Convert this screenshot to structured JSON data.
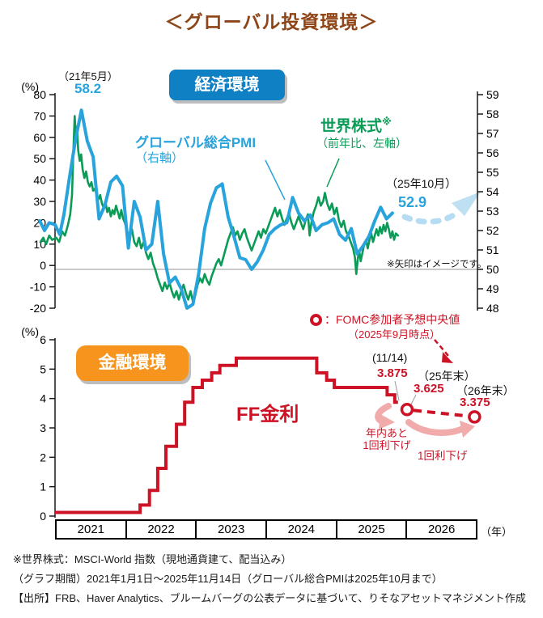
{
  "title": "＜グローバル投資環境＞",
  "top_chart": {
    "badge": "経済環境",
    "peak_date": "（21年5月）",
    "peak_value": "58.2",
    "pmi_label": "グローバル総合PMI",
    "pmi_sublabel": "（右軸）",
    "equity_label": "世界株式",
    "equity_label_mark": "※",
    "equity_sublabel": "（前年比、左軸）",
    "latest_date": "（25年10月）",
    "latest_value": "52.9",
    "arrow_note": "※矢印はイメージです。"
  },
  "bottom_chart": {
    "badge": "金融環境",
    "line_label": "FF金利",
    "fomc_legend": "：FOMC参加者予想中央値",
    "fomc_legend_sub": "（2025年9月時点）",
    "current_date": "(11/14)",
    "current_value": "3.875",
    "proj1_date": "（25年末）",
    "proj1_value": "3.625",
    "proj2_date": "（26年末）",
    "proj2_value": "3.375",
    "cut_note1_line1": "年内あと",
    "cut_note1_line2": "1回利下げ",
    "cut_note2": "1回利下げ"
  },
  "x_axis": {
    "years": [
      "2021",
      "2022",
      "2023",
      "2024",
      "2025",
      "2026"
    ],
    "unit": "（年）"
  },
  "footnotes": [
    "※世界株式：MSCI-World 指数（現地通貨建て、配当込み）",
    "（グラフ期間）2021年1月1日～2025年11月14日（グローバル総合PMIは2025年10月まで）",
    "【出所】FRB、Haver Analytics、ブルームバーグの公表データに基づいて、りそなアセットマネジメント作成"
  ],
  "colors": {
    "title_brown": "#8e4517",
    "econ_badge_blue": "#0f80c4",
    "fin_badge_orange": "#f7941e",
    "pmi_blue": "#29a3dc",
    "equity_green": "#0a9b57",
    "ff_red": "#cd1225",
    "pink_arrow": "#f2abab",
    "lightblue_arrow": "#bfe0f2",
    "baseline_gray": "#b8b8b8"
  },
  "chart_data": [
    {
      "type": "line",
      "name": "経済環境",
      "x_unit": "months since 2021-01",
      "left_axis": {
        "label": "(%)",
        "lim": [
          -20,
          80
        ],
        "ticks": [
          80,
          70,
          60,
          50,
          40,
          30,
          20,
          10,
          0,
          -10,
          -20
        ]
      },
      "right_axis": {
        "lim": [
          48,
          59
        ],
        "ticks": [
          59,
          58,
          57,
          56,
          55,
          54,
          53,
          52,
          51,
          50,
          49,
          48
        ]
      },
      "baseline_right_value": 50,
      "series": [
        {
          "name": "世界株式（前年比、左軸）",
          "axis": "left",
          "color": "#0a9b57",
          "points": [
            [
              -2.5,
              11
            ],
            [
              -2.0,
              13
            ],
            [
              -1.5,
              10
            ],
            [
              -1.0,
              14
            ],
            [
              -0.5,
              12
            ],
            [
              0.2,
              13
            ],
            [
              0.7,
              11
            ],
            [
              1.2,
              16
            ],
            [
              1.7,
              14
            ],
            [
              2.2,
              19
            ],
            [
              2.6,
              24
            ],
            [
              2.9,
              33
            ],
            [
              3.15,
              55
            ],
            [
              3.35,
              70
            ],
            [
              3.55,
              60
            ],
            [
              3.75,
              65
            ],
            [
              3.95,
              54
            ],
            [
              4.2,
              49
            ],
            [
              4.45,
              52
            ],
            [
              4.7,
              45
            ],
            [
              5.0,
              41
            ],
            [
              5.3,
              44
            ],
            [
              5.6,
              39
            ],
            [
              5.9,
              37
            ],
            [
              6.2,
              39
            ],
            [
              6.5,
              35
            ],
            [
              6.8,
              36
            ],
            [
              7.1,
              33
            ],
            [
              7.4,
              31
            ],
            [
              7.7,
              33
            ],
            [
              8.0,
              29
            ],
            [
              8.3,
              27
            ],
            [
              8.6,
              30
            ],
            [
              8.9,
              25
            ],
            [
              9.2,
              27
            ],
            [
              9.5,
              23
            ],
            [
              9.8,
              26
            ],
            [
              10.1,
              24
            ],
            [
              10.4,
              28
            ],
            [
              10.7,
              25
            ],
            [
              11.0,
              22
            ],
            [
              11.3,
              26
            ],
            [
              11.6,
              22
            ],
            [
              11.9,
              20
            ],
            [
              12.3,
              16
            ],
            [
              12.7,
              13
            ],
            [
              13.1,
              17
            ],
            [
              13.5,
              11
            ],
            [
              13.9,
              9
            ],
            [
              14.3,
              13
            ],
            [
              14.7,
              8
            ],
            [
              15.1,
              11
            ],
            [
              15.5,
              6
            ],
            [
              15.9,
              3
            ],
            [
              16.3,
              6
            ],
            [
              16.7,
              1
            ],
            [
              17.1,
              -2
            ],
            [
              17.5,
              -6
            ],
            [
              17.9,
              -9
            ],
            [
              18.3,
              -12
            ],
            [
              18.7,
              -8
            ],
            [
              19.1,
              -11
            ],
            [
              19.5,
              -8
            ],
            [
              19.9,
              -12
            ],
            [
              20.3,
              -15
            ],
            [
              20.7,
              -12
            ],
            [
              21.1,
              -16
            ],
            [
              21.5,
              -12
            ],
            [
              21.9,
              -9
            ],
            [
              22.3,
              -13
            ],
            [
              22.7,
              -16
            ],
            [
              23.1,
              -12
            ],
            [
              23.5,
              -17
            ],
            [
              23.9,
              -14
            ],
            [
              24.3,
              -9
            ],
            [
              24.7,
              -6
            ],
            [
              25.1,
              -8
            ],
            [
              25.5,
              -4
            ],
            [
              25.9,
              -7
            ],
            [
              26.3,
              -9
            ],
            [
              26.7,
              -5
            ],
            [
              27.1,
              -2
            ],
            [
              27.5,
              1
            ],
            [
              27.9,
              3
            ],
            [
              28.3,
              0
            ],
            [
              28.7,
              4
            ],
            [
              29.1,
              8
            ],
            [
              29.5,
              12
            ],
            [
              29.9,
              15
            ],
            [
              30.3,
              18
            ],
            [
              30.7,
              14
            ],
            [
              31.1,
              16
            ],
            [
              31.5,
              12
            ],
            [
              31.9,
              15
            ],
            [
              32.3,
              17
            ],
            [
              32.7,
              13
            ],
            [
              33.1,
              10
            ],
            [
              33.5,
              7
            ],
            [
              33.9,
              10
            ],
            [
              34.3,
              13
            ],
            [
              34.7,
              16
            ],
            [
              35.1,
              13
            ],
            [
              35.5,
              17
            ],
            [
              35.9,
              15
            ],
            [
              36.3,
              18
            ],
            [
              36.7,
              21
            ],
            [
              37.1,
              24
            ],
            [
              37.5,
              27
            ],
            [
              37.9,
              23
            ],
            [
              38.3,
              26
            ],
            [
              38.7,
              22
            ],
            [
              39.1,
              19
            ],
            [
              39.5,
              22
            ],
            [
              39.9,
              24
            ],
            [
              40.3,
              20
            ],
            [
              40.7,
              17
            ],
            [
              41.1,
              20
            ],
            [
              41.5,
              23
            ],
            [
              41.9,
              20
            ],
            [
              42.3,
              17
            ],
            [
              42.7,
              21
            ],
            [
              43.1,
              24
            ],
            [
              43.4,
              14
            ],
            [
              43.7,
              20
            ],
            [
              44.1,
              25
            ],
            [
              44.5,
              28
            ],
            [
              44.9,
              32
            ],
            [
              45.3,
              28
            ],
            [
              45.7,
              30
            ],
            [
              46.0,
              34
            ],
            [
              46.4,
              29
            ],
            [
              46.8,
              26
            ],
            [
              47.2,
              29
            ],
            [
              47.6,
              24
            ],
            [
              48.0,
              27
            ],
            [
              48.4,
              21
            ],
            [
              48.8,
              18
            ],
            [
              49.2,
              21
            ],
            [
              49.6,
              16
            ],
            [
              50.0,
              14
            ],
            [
              50.4,
              11
            ],
            [
              50.8,
              8
            ],
            [
              51.1,
              4
            ],
            [
              51.35,
              -4
            ],
            [
              51.6,
              3
            ],
            [
              51.85,
              7
            ],
            [
              52.1,
              2
            ],
            [
              52.4,
              6
            ],
            [
              52.7,
              10
            ],
            [
              53.0,
              12
            ],
            [
              53.3,
              8
            ],
            [
              53.6,
              12
            ],
            [
              53.9,
              15
            ],
            [
              54.2,
              11
            ],
            [
              54.5,
              14
            ],
            [
              54.8,
              17
            ],
            [
              55.1,
              14
            ],
            [
              55.4,
              18
            ],
            [
              55.7,
              15
            ],
            [
              56.0,
              19
            ],
            [
              56.3,
              16
            ],
            [
              56.6,
              20
            ],
            [
              56.9,
              17
            ],
            [
              57.2,
              13
            ],
            [
              57.5,
              16
            ],
            [
              57.8,
              12
            ],
            [
              58.1,
              15
            ],
            [
              58.45,
              14
            ]
          ]
        },
        {
          "name": "グローバル総合PMI（右軸）",
          "axis": "right",
          "color": "#29a3dc",
          "points": [
            [
              -2.6,
              52.5
            ],
            [
              -1.8,
              52.0
            ],
            [
              -1.0,
              52.4
            ],
            [
              0.0,
              52.3
            ],
            [
              0.8,
              51.8
            ],
            [
              1.5,
              52.8
            ],
            [
              2.5,
              54.8
            ],
            [
              3.5,
              56.7
            ],
            [
              4.5,
              58.2
            ],
            [
              5.5,
              56.6
            ],
            [
              6.5,
              55.8
            ],
            [
              7.5,
              52.6
            ],
            [
              8.5,
              53.3
            ],
            [
              9.5,
              54.5
            ],
            [
              10.5,
              54.8
            ],
            [
              11.5,
              54.3
            ],
            [
              12.5,
              51.1
            ],
            [
              13.5,
              53.5
            ],
            [
              14.5,
              52.7
            ],
            [
              15.5,
              51.0
            ],
            [
              16.5,
              51.3
            ],
            [
              17.5,
              53.5
            ],
            [
              18.5,
              50.8
            ],
            [
              19.5,
              49.3
            ],
            [
              20.5,
              49.6
            ],
            [
              21.5,
              49.0
            ],
            [
              22.5,
              48.0
            ],
            [
              23.5,
              48.2
            ],
            [
              24.5,
              49.8
            ],
            [
              25.5,
              52.1
            ],
            [
              26.5,
              53.4
            ],
            [
              27.5,
              54.2
            ],
            [
              28.5,
              54.4
            ],
            [
              29.5,
              52.7
            ],
            [
              30.5,
              51.7
            ],
            [
              31.5,
              50.6
            ],
            [
              32.5,
              50.5
            ],
            [
              33.5,
              50.0
            ],
            [
              34.5,
              50.4
            ],
            [
              35.5,
              51.0
            ],
            [
              36.5,
              51.8
            ],
            [
              37.5,
              52.1
            ],
            [
              38.5,
              52.3
            ],
            [
              39.5,
              52.4
            ],
            [
              40.5,
              53.7
            ],
            [
              41.5,
              52.9
            ],
            [
              42.5,
              52.5
            ],
            [
              43.5,
              52.8
            ],
            [
              44.5,
              52.0
            ],
            [
              45.5,
              52.3
            ],
            [
              46.5,
              52.4
            ],
            [
              47.5,
              52.6
            ],
            [
              48.5,
              51.8
            ],
            [
              49.5,
              51.5
            ],
            [
              50.5,
              52.1
            ],
            [
              51.5,
              50.8
            ],
            [
              52.5,
              51.2
            ],
            [
              53.5,
              51.7
            ],
            [
              54.5,
              52.5
            ],
            [
              55.5,
              53.2
            ],
            [
              56.5,
              52.6
            ],
            [
              57.5,
              52.9
            ]
          ]
        }
      ]
    },
    {
      "type": "line",
      "name": "金融環境",
      "y_axis": {
        "label": "(%)",
        "lim": [
          0,
          6
        ],
        "ticks": [
          6,
          5,
          4,
          3,
          2,
          1,
          0
        ]
      },
      "series": [
        {
          "name": "FF金利",
          "color": "#cd1225",
          "style": "step",
          "end_t": 58.45,
          "steps": [
            [
              0,
              0.125
            ],
            [
              14.5,
              0.375
            ],
            [
              16.1,
              0.875
            ],
            [
              17.5,
              1.625
            ],
            [
              18.9,
              2.375
            ],
            [
              20.7,
              3.125
            ],
            [
              22.1,
              3.875
            ],
            [
              23.5,
              4.375
            ],
            [
              25.1,
              4.625
            ],
            [
              26.7,
              4.875
            ],
            [
              28.1,
              5.125
            ],
            [
              30.9,
              5.375
            ],
            [
              44.6,
              4.875
            ],
            [
              46.3,
              4.625
            ],
            [
              47.6,
              4.375
            ],
            [
              56.6,
              4.125
            ],
            [
              57.9,
              3.875
            ]
          ]
        }
      ],
      "projections": [
        {
          "date": "25年末",
          "value": 3.625,
          "t": 60.0
        },
        {
          "date": "26年末",
          "value": 3.375,
          "t": 71.5
        }
      ]
    }
  ]
}
